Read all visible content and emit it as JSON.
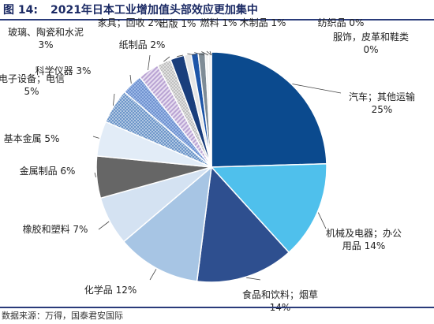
{
  "header": {
    "figure_no": "图 14:",
    "title": "2021年日本工业增加值头部效应更加集中"
  },
  "source": "数据来源：万得，国泰君安国际",
  "chart_data": {
    "type": "pie",
    "slices": [
      {
        "name": "汽车；其他运输",
        "value": 25,
        "label_lines": [
          "汽车；其他运输",
          "25%"
        ],
        "color": "#0b4a8e",
        "pattern": "solid"
      },
      {
        "name": "机械及电器；办公用品",
        "value": 14,
        "label_lines": [
          "机械及电器；办公",
          "用品 14%"
        ],
        "color": "#4fc0ec",
        "pattern": "solid"
      },
      {
        "name": "食品和饮料；烟草",
        "value": 14,
        "label_lines": [
          "食品和饮料；烟草",
          "14%"
        ],
        "color": "#2e4f8f",
        "pattern": "solid"
      },
      {
        "name": "化学品",
        "value": 12,
        "label_lines": [
          "化学品 12%"
        ],
        "color": "#a7c5e4",
        "pattern": "solid"
      },
      {
        "name": "橡胶和塑料",
        "value": 7,
        "label_lines": [
          "橡胶和塑料 7%"
        ],
        "color": "#d4e2f2",
        "pattern": "solid"
      },
      {
        "name": "金属制品",
        "value": 6,
        "label_lines": [
          "金属制品 6%"
        ],
        "color": "#666666",
        "pattern": "solid"
      },
      {
        "name": "基本金属",
        "value": 5,
        "label_lines": [
          "基本金属 5%"
        ],
        "color": "#e2ecf7",
        "pattern": "solid"
      },
      {
        "name": "电子设备；电信",
        "value": 5,
        "label_lines": [
          "电子设备；电信",
          "5%"
        ],
        "color": "#6d96c9",
        "pattern": "dots"
      },
      {
        "name": "科学仪器",
        "value": 3,
        "label_lines": [
          "科学仪器 3%"
        ],
        "color": "#8aa9de",
        "pattern": "dots"
      },
      {
        "name": "玻璃、陶瓷和水泥",
        "value": 3,
        "label_lines": [
          "玻璃、陶瓷和水泥",
          "3%"
        ],
        "color": "#c7b6dc",
        "pattern": "hatch"
      },
      {
        "name": "纸制品",
        "value": 2,
        "label_lines": [
          "纸制品 2%"
        ],
        "color": "#bfbfbf",
        "pattern": "dots"
      },
      {
        "name": "家具；回收",
        "value": 2,
        "label_lines": [
          "家具；回收 2%"
        ],
        "color": "#1a3e7c",
        "pattern": "solid"
      },
      {
        "name": "出版",
        "value": 1,
        "label_lines": [
          "出版 1%"
        ],
        "color": "#e6e6e6",
        "pattern": "solid"
      },
      {
        "name": "燃料",
        "value": 1,
        "label_lines": [
          "燃料 1%"
        ],
        "color": "#1d55a8",
        "pattern": "solid"
      },
      {
        "name": "木制品",
        "value": 1,
        "label_lines": [
          "木制品 1%"
        ],
        "color": "#7f8c96",
        "pattern": "solid"
      },
      {
        "name": "纺织品",
        "value": 0,
        "label_lines": [
          "纺织品 0%"
        ],
        "color": "#f2f2f2",
        "pattern": "solid"
      },
      {
        "name": "服饰，皮革和鞋类",
        "value": 0,
        "label_lines": [
          "服饰，皮革和鞋类",
          "0%"
        ],
        "color": "#f2f2f2",
        "pattern": "solid"
      }
    ]
  }
}
